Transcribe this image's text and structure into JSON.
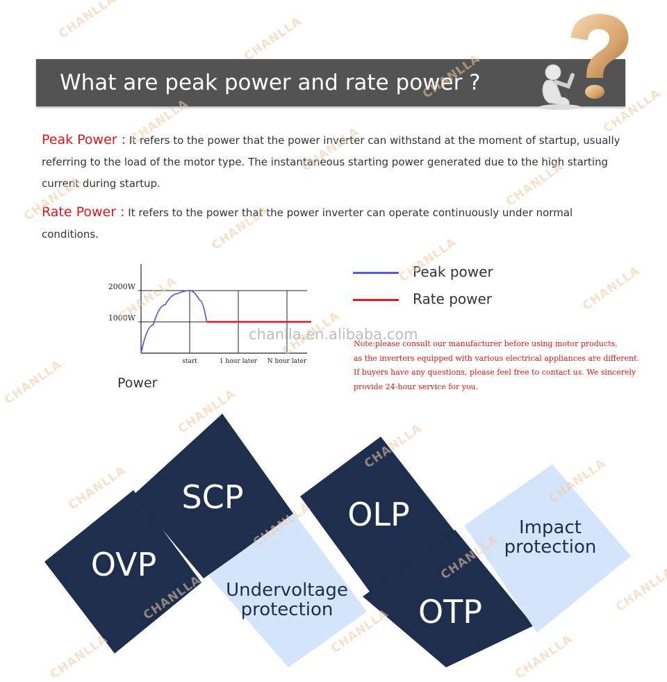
{
  "header": {
    "title": "What are peak power and rate power ?"
  },
  "definitions": {
    "peak_term": "Peak Power :",
    "peak_text": " It refers to the power that the power inverter can withstand at the moment of startup, usually referring to the load of the motor type. The instantaneous starting power generated due to the high starting current during startup.",
    "rate_term": "Rate Power :",
    "rate_text": " It refers to the power that the power inverter can operate continuously under normal conditions."
  },
  "chart": {
    "y_axis_label": "Power",
    "legend": [
      {
        "name": "Peak power",
        "color": "#5a5ae8"
      },
      {
        "name": "Rate power",
        "color": "#e8141e"
      }
    ]
  },
  "chart_data": {
    "type": "line",
    "categories": [
      "start",
      "1 hour later",
      "N hour later"
    ],
    "yticks": [
      "2000W",
      "1000W"
    ],
    "ytick_values": [
      2000,
      1000
    ],
    "ylabel": "Power",
    "grid": true,
    "series": [
      {
        "name": "Peak power",
        "color": "#5a5ae8",
        "x": [
          0,
          0.25,
          0.5,
          0.75,
          1.0,
          1.2,
          1.35
        ],
        "y": [
          0,
          900,
          1550,
          1900,
          2000,
          1700,
          1000
        ]
      },
      {
        "name": "Rate power",
        "color": "#e8141e",
        "x": [
          1.35,
          3.5
        ],
        "y": [
          1000,
          1000
        ]
      }
    ]
  },
  "site": "chanlla.en.alibaba.com",
  "site_watermark": "chanlla.en.alibaba.com",
  "note": [
    "Note:please consult our manufacturer before using motor products,",
    "as the inverters equipped with various electrical appliances are different.",
    "If buyers have any questions, please feel free to contact us. We sincerely",
    "provide 24-hour service for you."
  ],
  "features": [
    {
      "label": "SCP"
    },
    {
      "label": "OVP"
    },
    {
      "label": "OLP"
    },
    {
      "label": "OTP"
    },
    {
      "line1": "Undervoltage",
      "line2": "protection"
    },
    {
      "line1": "Impact",
      "line2": "protection"
    }
  ],
  "watermark_text": "CHANLLA",
  "colors": {
    "banner": "#535353",
    "accent_red": "#e31414",
    "navy": "#1d2f4d",
    "light_blue": "#d4e5fb"
  }
}
